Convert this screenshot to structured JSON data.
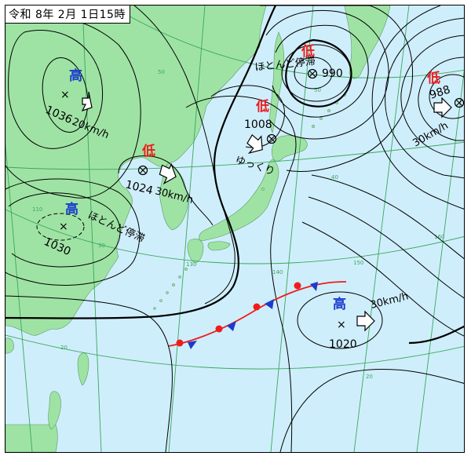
{
  "date_label": "令和 8年 2月 1日15時",
  "colors": {
    "sea": "#cfeefc",
    "land": "#9fe3a4",
    "grid": "#39a85a",
    "isobar": "#000000",
    "high_label": "#1a3ccc",
    "low_label": "#ee1c1c"
  },
  "pressure_systems": [
    {
      "type_label": "高",
      "kind": "high",
      "pressure": "1036",
      "motion": "20km/h"
    },
    {
      "type_label": "高",
      "kind": "high",
      "pressure": "1030",
      "motion": "ほとんど停滞"
    },
    {
      "type_label": "低",
      "kind": "low",
      "pressure": "1024",
      "motion": "30km/h"
    },
    {
      "type_label": "低",
      "kind": "low",
      "pressure": "1008",
      "motion": "ゆっくり"
    },
    {
      "type_label": "低",
      "kind": "low",
      "pressure": "990",
      "motion": "ほとんど停滞"
    },
    {
      "type_label": "低",
      "kind": "low",
      "pressure": "988",
      "motion": "30km/h"
    },
    {
      "type_label": "高",
      "kind": "high",
      "pressure": "1020",
      "motion": "30km/h"
    }
  ],
  "grid_labels": {
    "lat_50": "50",
    "lat_40": "40",
    "lat_30": "30",
    "lat_20": "20",
    "lon_110": "110",
    "lon_130": "130",
    "lon_140": "140",
    "lon_150": "150",
    "lon_160": "160"
  }
}
